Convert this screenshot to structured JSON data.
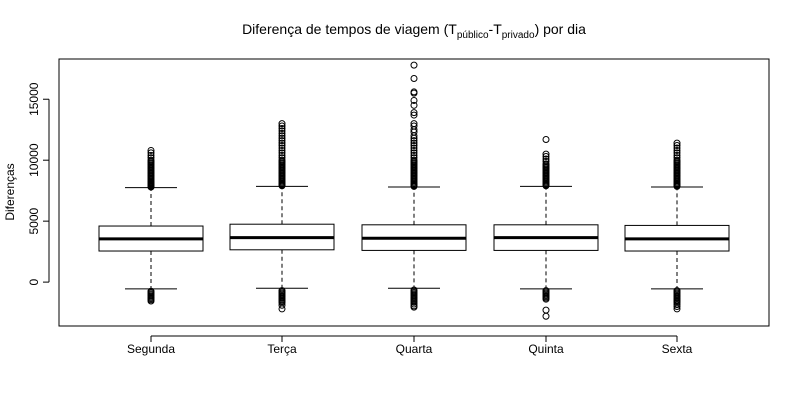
{
  "chart_data": {
    "type": "boxplot",
    "title": {
      "prefix": "Diferença de tempos de viagem (T",
      "sub1": "público",
      "mid": "-T",
      "sub2": "privado",
      "suffix": ") por dia"
    },
    "xlabel": "",
    "ylabel": "Diferenças",
    "ylim": [
      -3600,
      18300
    ],
    "yticks": [
      0,
      5000,
      10000,
      15000
    ],
    "grid": false,
    "categories": [
      "Segunda",
      "Terça",
      "Quarta",
      "Quinta",
      "Sexta"
    ],
    "boxes": [
      {
        "category": "Segunda",
        "whisker_low": -550,
        "q1": 2550,
        "median": 3550,
        "q3": 4600,
        "whisker_high": 7750,
        "outliers_high": [
          7800,
          7850,
          7900,
          7950,
          8000,
          8050,
          8100,
          8150,
          8200,
          8300,
          8400,
          8500,
          8600,
          8700,
          8800,
          8900,
          9000,
          9100,
          9200,
          9300,
          9400,
          9500,
          9600,
          9700,
          9800,
          9900,
          10000,
          10200,
          10400,
          10600,
          10800
        ],
        "outliers_low": [
          -750,
          -850,
          -950,
          -1050,
          -1150,
          -1250,
          -1350,
          -1450,
          -1550
        ]
      },
      {
        "category": "Terça",
        "whisker_low": -500,
        "q1": 2650,
        "median": 3650,
        "q3": 4750,
        "whisker_high": 7850,
        "outliers_high": [
          7900,
          7950,
          8000,
          8050,
          8100,
          8200,
          8300,
          8400,
          8500,
          8600,
          8700,
          8800,
          8900,
          9000,
          9100,
          9200,
          9300,
          9400,
          9500,
          9600,
          9700,
          9800,
          9900,
          10000,
          10200,
          10400,
          10600,
          10800,
          11000,
          11200,
          11400,
          11600,
          11800,
          12000,
          12200,
          12400,
          12600,
          12800,
          13000
        ],
        "outliers_low": [
          -700,
          -800,
          -900,
          -1000,
          -1100,
          -1200,
          -1300,
          -1400,
          -1500,
          -1600,
          -1700,
          -1900,
          -2200
        ]
      },
      {
        "category": "Quarta",
        "whisker_low": -500,
        "q1": 2600,
        "median": 3600,
        "q3": 4700,
        "whisker_high": 7800,
        "outliers_high": [
          7850,
          7900,
          7950,
          8000,
          8100,
          8200,
          8300,
          8400,
          8500,
          8600,
          8700,
          8800,
          8900,
          9000,
          9100,
          9200,
          9300,
          9400,
          9500,
          9600,
          9700,
          9800,
          9900,
          10000,
          10200,
          10400,
          10600,
          10800,
          11000,
          11200,
          11400,
          11600,
          11800,
          12000,
          12300,
          12500,
          12800,
          13000,
          13700,
          13900,
          14500,
          14900,
          15500,
          15600,
          16700,
          17800
        ],
        "outliers_low": [
          -650,
          -750,
          -850,
          -950,
          -1050,
          -1150,
          -1250,
          -1350,
          -1450,
          -1550,
          -1650,
          -1800,
          -1950,
          -2050
        ]
      },
      {
        "category": "Quinta",
        "whisker_low": -550,
        "q1": 2600,
        "median": 3650,
        "q3": 4700,
        "whisker_high": 7850,
        "outliers_high": [
          7900,
          7950,
          8000,
          8050,
          8100,
          8200,
          8300,
          8400,
          8500,
          8600,
          8700,
          8800,
          8900,
          9000,
          9100,
          9200,
          9300,
          9400,
          9500,
          9600,
          9700,
          9900,
          10100,
          10300,
          10500,
          11700
        ],
        "outliers_low": [
          -700,
          -800,
          -900,
          -1000,
          -1100,
          -1200,
          -1300,
          -1400,
          -2300,
          -2800
        ]
      },
      {
        "category": "Sexta",
        "whisker_low": -550,
        "q1": 2550,
        "median": 3550,
        "q3": 4650,
        "whisker_high": 7800,
        "outliers_high": [
          7850,
          7900,
          7950,
          8000,
          8050,
          8100,
          8200,
          8300,
          8400,
          8500,
          8600,
          8700,
          8800,
          8900,
          9000,
          9100,
          9200,
          9300,
          9400,
          9500,
          9600,
          9700,
          9800,
          9900,
          10000,
          10200,
          10400,
          10600,
          10800,
          11000,
          11200,
          11400
        ],
        "outliers_low": [
          -700,
          -800,
          -900,
          -1000,
          -1100,
          -1200,
          -1300,
          -1400,
          -1500,
          -1600,
          -1700,
          -1850,
          -2000,
          -2200
        ]
      }
    ]
  }
}
